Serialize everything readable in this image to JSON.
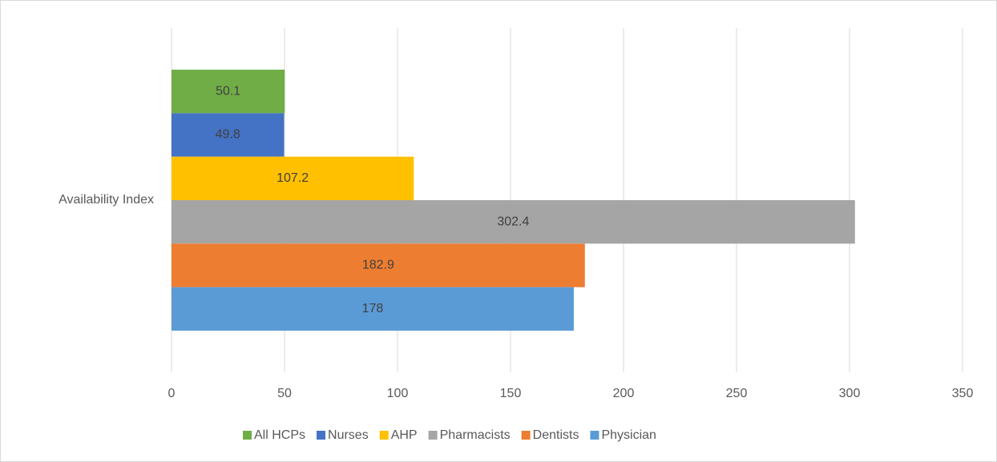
{
  "chart_data": {
    "type": "bar",
    "orientation": "horizontal",
    "categories": [
      "Availability Index"
    ],
    "series": [
      {
        "name": "All HCPs",
        "color": "#70ad47",
        "values": [
          50.1
        ]
      },
      {
        "name": "Nurses",
        "color": "#4472c4",
        "values": [
          49.8
        ]
      },
      {
        "name": "AHP",
        "color": "#ffc000",
        "values": [
          107.2
        ]
      },
      {
        "name": "Pharmacists",
        "color": "#a5a5a5",
        "values": [
          302.4
        ]
      },
      {
        "name": "Dentists",
        "color": "#ed7d31",
        "values": [
          182.9
        ]
      },
      {
        "name": "Physician",
        "color": "#5b9bd5",
        "values": [
          178
        ]
      }
    ],
    "xlim": [
      0,
      350
    ],
    "xticks": [
      0,
      50,
      100,
      150,
      200,
      250,
      300,
      350
    ],
    "grid": true,
    "legend": "bottom",
    "data_labels": true
  }
}
